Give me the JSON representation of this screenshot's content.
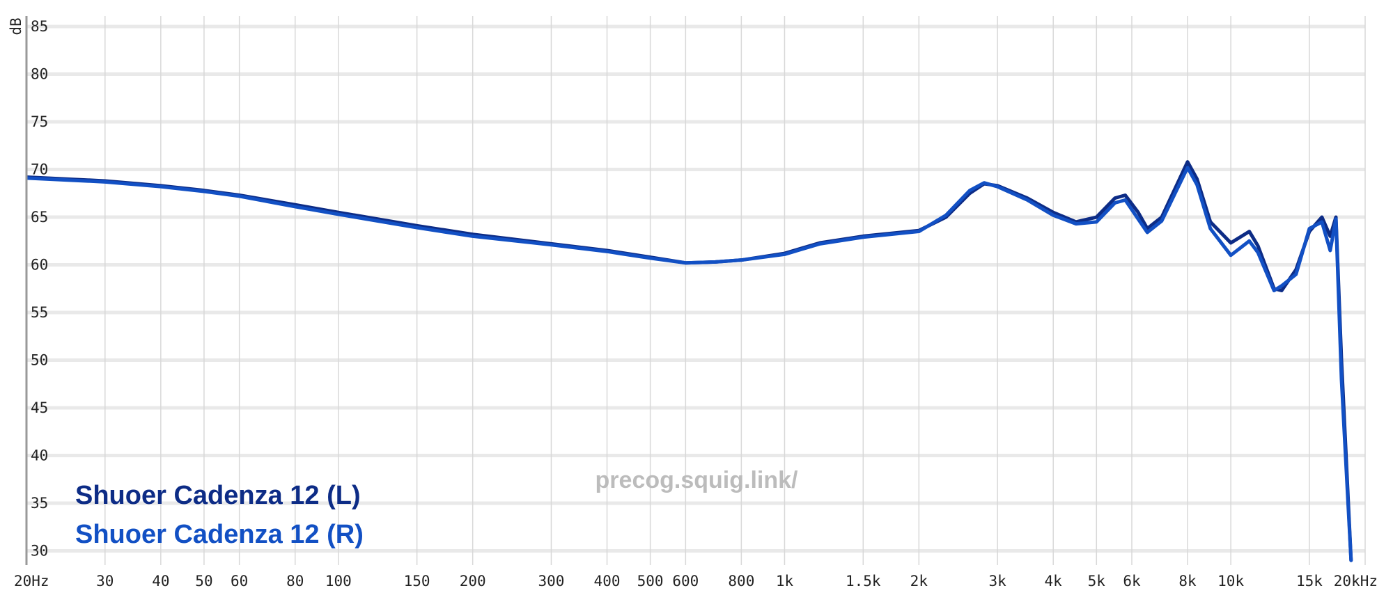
{
  "chart_data": {
    "type": "line",
    "y_label": "dB",
    "watermark": "precog.squig.link/",
    "log_x": true,
    "grid": true,
    "xlim": [
      20,
      20000
    ],
    "ylim": [
      28.5,
      86.1
    ],
    "yticks": [
      30,
      35,
      40,
      45,
      50,
      55,
      60,
      65,
      70,
      75,
      80,
      85
    ],
    "xticks": [
      {
        "value": 20,
        "label": "20Hz"
      },
      30,
      40,
      50,
      60,
      80,
      100,
      150,
      200,
      300,
      400,
      500,
      600,
      800,
      {
        "value": 1000,
        "label": "1k"
      },
      {
        "value": 1500,
        "label": "1.5k"
      },
      {
        "value": 2000,
        "label": "2k"
      },
      {
        "value": 3000,
        "label": "3k"
      },
      {
        "value": 4000,
        "label": "4k"
      },
      {
        "value": 5000,
        "label": "5k"
      },
      {
        "value": 6000,
        "label": "6k"
      },
      {
        "value": 8000,
        "label": "8k"
      },
      {
        "value": 10000,
        "label": "10k"
      },
      {
        "value": 15000,
        "label": "15k"
      },
      {
        "value": 20000,
        "label": "20kHz"
      }
    ],
    "x": [
      20,
      30,
      40,
      50,
      60,
      80,
      100,
      150,
      200,
      300,
      400,
      500,
      600,
      700,
      800,
      1000,
      1200,
      1500,
      2000,
      2300,
      2600,
      2800,
      3000,
      3500,
      4000,
      4500,
      5000,
      5500,
      5800,
      6200,
      6500,
      7000,
      7500,
      8000,
      8400,
      9000,
      10000,
      11000,
      11500,
      12500,
      13000,
      14000,
      15000,
      16000,
      16700,
      17200,
      17700,
      18600
    ],
    "series": [
      {
        "name": "Shuoer Cadenza 12 (L)",
        "color": "#0d2c86",
        "values": [
          69.2,
          68.8,
          68.3,
          67.8,
          67.3,
          66.3,
          65.5,
          64.1,
          63.2,
          62.2,
          61.5,
          60.8,
          60.2,
          60.3,
          60.5,
          61.2,
          62.3,
          63.0,
          63.6,
          65.0,
          67.5,
          68.5,
          68.3,
          67.0,
          65.5,
          64.5,
          65.0,
          67.0,
          67.3,
          65.5,
          63.8,
          65.0,
          68.0,
          70.8,
          69.0,
          64.5,
          62.3,
          63.5,
          62.0,
          57.5,
          57.3,
          59.5,
          63.5,
          65.0,
          63.0,
          65.0,
          50.0,
          29.0
        ]
      },
      {
        "name": "Shuoer Cadenza 12 (R)",
        "color": "#1250c4",
        "values": [
          69.1,
          68.7,
          68.2,
          67.7,
          67.2,
          66.1,
          65.3,
          63.9,
          63.0,
          62.1,
          61.4,
          60.7,
          60.2,
          60.3,
          60.5,
          61.1,
          62.2,
          62.9,
          63.5,
          65.2,
          67.8,
          68.6,
          68.2,
          66.8,
          65.2,
          64.3,
          64.5,
          66.5,
          66.8,
          64.8,
          63.4,
          64.6,
          67.5,
          70.2,
          68.4,
          63.8,
          61.0,
          62.5,
          61.3,
          57.3,
          57.8,
          59.0,
          63.8,
          64.5,
          61.5,
          64.8,
          48.0,
          29.0
        ]
      }
    ]
  }
}
